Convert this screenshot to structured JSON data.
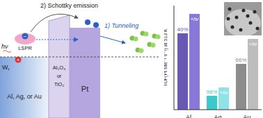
{
  "diagram": {
    "step2": "2) Schottky emission",
    "step1": "1) Tunneling",
    "light": "hν",
    "plasmon": "LSPR",
    "work_function": {
      "symbol": "W",
      "subscript": "f"
    },
    "metal": "Al, Ag, or Au",
    "oxide": [
      "Al₂O₃",
      "or",
      "TiO₂"
    ],
    "catalyst": "Pt",
    "hole": "+",
    "electron": "−"
  },
  "chart_data": {
    "type": "bar",
    "y_label": "TOF(Pt site⁻¹ s⁻¹) at 513 K",
    "categories": [
      "Al",
      "Ag",
      "Au"
    ],
    "series": [
      {
        "values": [
          110,
          20,
          66
        ],
        "colors": [
          "#6b58b5",
          "#3fc8cc",
          "#8c8c8c"
        ],
        "annotations": [
          "40%",
          "98%",
          "66%"
        ]
      },
      {
        "values": [
          138,
          32,
          102
        ],
        "colors": [
          "#8a78d8",
          "#8fe3e6",
          "#bdbdbd"
        ],
        "annotations": [
          "+hν",
          "+hν",
          "+hν"
        ]
      }
    ],
    "ylim": [
      0,
      150
    ],
    "tick_labels": "x",
    "grid": false
  }
}
